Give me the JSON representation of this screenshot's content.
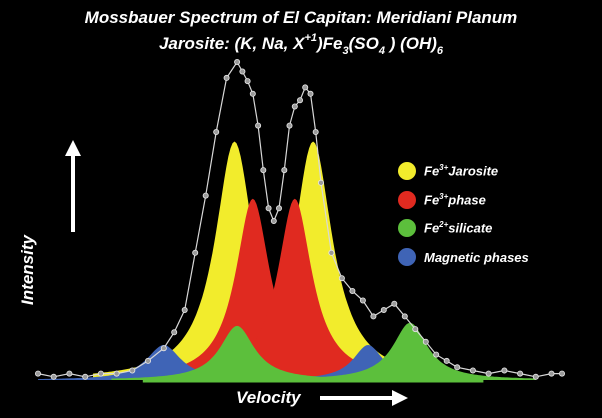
{
  "title": {
    "line1": "Mossbauer Spectrum of El Capitan:  Meridiani Planum",
    "line2_prefix": "Jarosite: (K, Na, X",
    "line2_sup": "+1",
    "line2_mid": ")Fe",
    "line2_sub1": "3",
    "line2_mid2": "(SO",
    "line2_sub2": "4",
    "line2_mid3": " ) (OH)",
    "line2_sub3": "6"
  },
  "axes": {
    "xlabel": "Velocity",
    "ylabel": "Intensity"
  },
  "legend": [
    {
      "ion": "Fe",
      "charge": "3+",
      "label": "Jarosite",
      "color": "#f2ec2c"
    },
    {
      "ion": "Fe",
      "charge": "3+",
      "label": "phase",
      "color": "#e02a20"
    },
    {
      "ion": "Fe",
      "charge": "2+",
      "label": "silicate",
      "color": "#5cbf3c"
    },
    {
      "ion": "",
      "charge": "",
      "label": "Magnetic phases",
      "color": "#3f64b6"
    }
  ],
  "chart_data": {
    "type": "area",
    "title": "Mossbauer Spectrum of El Capitan:  Meridiani Planum",
    "xlabel": "Velocity",
    "ylabel": "Intensity",
    "xlim": [
      0,
      100
    ],
    "ylim": [
      0,
      100
    ],
    "grid": false,
    "legend_position": "right",
    "series": [
      {
        "name": "Fe3+ Jarosite",
        "color": "#f2ec2c",
        "peaks": [
          {
            "center": 37.5,
            "height": 75,
            "width": 4.5
          },
          {
            "center": 52.5,
            "height": 75,
            "width": 4.5
          }
        ]
      },
      {
        "name": "Fe3+ phase",
        "color": "#e02a20",
        "peaks": [
          {
            "center": 41,
            "height": 57,
            "width": 4
          },
          {
            "center": 49,
            "height": 57,
            "width": 4
          }
        ]
      },
      {
        "name": "Fe2+ silicate",
        "color": "#5cbf3c",
        "peaks": [
          {
            "center": 38,
            "height": 17,
            "width": 4
          },
          {
            "center": 71,
            "height": 18,
            "width": 4
          }
        ]
      },
      {
        "name": "Magnetic phases",
        "color": "#3f64b6",
        "peaks": [
          {
            "center": 24,
            "height": 11,
            "width": 4
          },
          {
            "center": 63,
            "height": 11,
            "width": 3.5
          }
        ]
      }
    ],
    "measured": {
      "x": [
        0,
        3,
        6,
        9,
        12,
        15,
        18,
        21,
        24,
        26,
        28,
        30,
        32,
        34,
        36,
        38,
        39,
        40,
        41,
        42,
        43,
        44,
        45,
        46,
        47,
        48,
        49,
        50,
        51,
        52,
        53,
        54,
        56,
        58,
        60,
        62,
        64,
        66,
        68,
        70,
        72,
        74,
        76,
        78,
        80,
        83,
        86,
        89,
        92,
        95,
        98,
        100
      ],
      "y": [
        2,
        1,
        2,
        1,
        2,
        2,
        3,
        6,
        10,
        15,
        22,
        40,
        58,
        78,
        95,
        100,
        97,
        94,
        90,
        80,
        66,
        54,
        50,
        54,
        66,
        80,
        86,
        88,
        92,
        90,
        78,
        62,
        40,
        32,
        28,
        25,
        20,
        22,
        24,
        20,
        16,
        12,
        8,
        6,
        4,
        3,
        2,
        3,
        2,
        1,
        2,
        2
      ]
    }
  }
}
